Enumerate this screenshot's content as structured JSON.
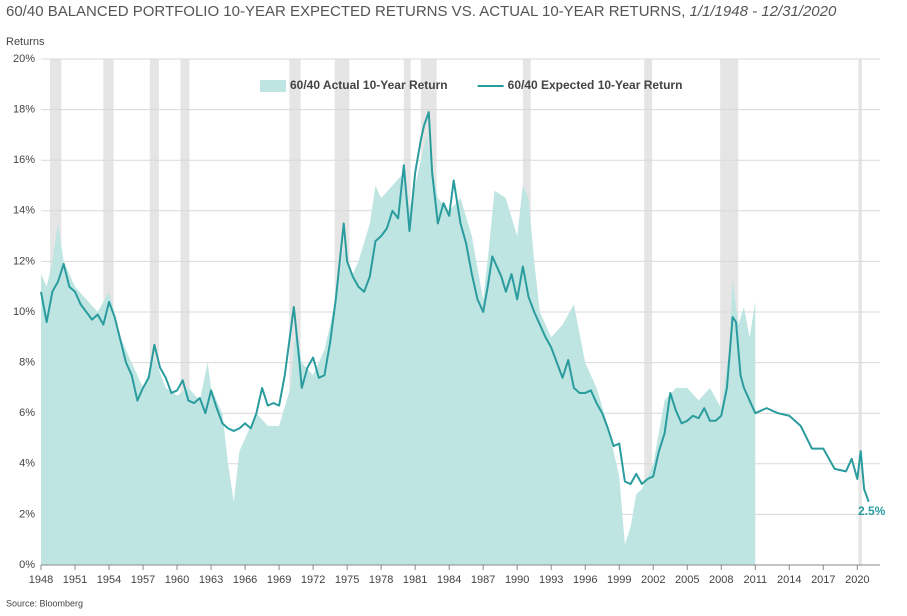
{
  "chart_data": {
    "type": "area-line",
    "title": "60/40 BALANCED PORTFOLIO 10-YEAR EXPECTED RETURNS VS. ACTUAL 10-YEAR RETURNS,",
    "title_range": "1/1/1948 - 12/31/2020",
    "y_label": "Returns",
    "source": "Source: Bloomberg",
    "xlim": [
      1948,
      2022
    ],
    "xticks": [
      1948,
      1951,
      1954,
      1957,
      1960,
      1963,
      1966,
      1969,
      1972,
      1975,
      1978,
      1981,
      1984,
      1987,
      1990,
      1993,
      1996,
      1999,
      2002,
      2005,
      2008,
      2011,
      2014,
      2017,
      2020
    ],
    "ylim": [
      0,
      20
    ],
    "yticks": [
      {
        "value": 0,
        "label": "0%"
      },
      {
        "value": 2,
        "label": "2%"
      },
      {
        "value": 4,
        "label": "4%"
      },
      {
        "value": 6,
        "label": "6%"
      },
      {
        "value": 8,
        "label": "8%"
      },
      {
        "value": 10,
        "label": "10%"
      },
      {
        "value": 12,
        "label": "12%"
      },
      {
        "value": 14,
        "label": "14%"
      },
      {
        "value": 16,
        "label": "16%"
      },
      {
        "value": 18,
        "label": "18%"
      },
      {
        "value": 20,
        "label": "20%"
      }
    ],
    "grid": true,
    "legend": "top",
    "shaded_color": "#e5e5e5",
    "shaded_periods": [
      [
        1948.8,
        1949.8
      ],
      [
        1953.5,
        1954.4
      ],
      [
        1957.6,
        1958.4
      ],
      [
        1960.3,
        1961.1
      ],
      [
        1969.9,
        1970.9
      ],
      [
        1973.9,
        1975.2
      ],
      [
        1980.0,
        1980.6
      ],
      [
        1981.5,
        1982.9
      ],
      [
        1990.5,
        1991.2
      ],
      [
        2001.2,
        2001.9
      ],
      [
        2007.9,
        2009.5
      ],
      [
        2020.1,
        2020.4
      ]
    ],
    "series": [
      {
        "name": "60/40 Actual 10-Year Return",
        "kind": "area",
        "color": "#bfe5e3",
        "x": [
          1948.0,
          1948.5,
          1949.0,
          1949.5,
          1950.0,
          1951.0,
          1952.0,
          1953.0,
          1954.0,
          1955.0,
          1956.0,
          1957.0,
          1958.0,
          1959.0,
          1960.0,
          1961.0,
          1962.0,
          1962.7,
          1963.0,
          1964.0,
          1964.5,
          1965.0,
          1965.5,
          1966.0,
          1967.0,
          1968.0,
          1969.0,
          1970.0,
          1970.5,
          1971.0,
          1972.0,
          1973.0,
          1974.0,
          1974.7,
          1975.5,
          1976.0,
          1977.0,
          1977.5,
          1978.0,
          1979.0,
          1980.0,
          1980.5,
          1981.0,
          1982.0,
          1983.0,
          1984.0,
          1985.0,
          1986.0,
          1987.0,
          1987.5,
          1988.0,
          1989.0,
          1990.0,
          1990.5,
          1991.0,
          1991.5,
          1992.0,
          1993.0,
          1994.0,
          1995.0,
          1996.0,
          1997.0,
          1998.0,
          1999.0,
          1999.5,
          2000.0,
          2000.5,
          2001.0,
          2002.0,
          2003.0,
          2004.0,
          2005.0,
          2006.0,
          2007.0,
          2008.0,
          2008.7,
          2009.0,
          2009.5,
          2010.0,
          2010.5,
          2011.0
        ],
        "values": [
          11.5,
          11.0,
          12.0,
          13.5,
          12.0,
          11.0,
          10.5,
          10.0,
          10.8,
          9.0,
          8.0,
          7.0,
          8.2,
          7.0,
          6.7,
          7.0,
          6.5,
          8.0,
          7.0,
          6.0,
          4.0,
          2.5,
          4.5,
          5.0,
          6.0,
          5.5,
          5.5,
          7.0,
          9.5,
          8.0,
          7.5,
          8.5,
          10.5,
          12.5,
          11.5,
          12.0,
          13.5,
          15.0,
          14.5,
          15.0,
          15.5,
          14.0,
          15.0,
          17.0,
          14.5,
          14.0,
          14.5,
          13.0,
          10.5,
          12.5,
          14.8,
          14.5,
          13.0,
          15.0,
          14.5,
          12.0,
          10.0,
          9.0,
          9.5,
          10.3,
          8.0,
          7.0,
          5.5,
          3.5,
          0.8,
          1.5,
          2.8,
          3.0,
          4.0,
          6.5,
          7.0,
          7.0,
          6.5,
          7.0,
          6.2,
          8.5,
          11.3,
          9.5,
          10.2,
          9.0,
          10.4
        ]
      },
      {
        "name": "60/40 Expected 10-Year Return",
        "kind": "line",
        "color": "#2b9c9e",
        "end_label": "2.5%",
        "x": [
          1948.0,
          1948.5,
          1949.0,
          1949.5,
          1950.0,
          1950.5,
          1951.0,
          1951.5,
          1952.0,
          1952.5,
          1953.0,
          1953.5,
          1954.0,
          1954.5,
          1955.0,
          1955.5,
          1956.0,
          1956.5,
          1957.0,
          1957.5,
          1958.0,
          1958.5,
          1959.0,
          1959.5,
          1960.0,
          1960.5,
          1961.0,
          1961.5,
          1962.0,
          1962.5,
          1963.0,
          1963.5,
          1964.0,
          1964.5,
          1965.0,
          1965.5,
          1966.0,
          1966.5,
          1967.0,
          1967.5,
          1968.0,
          1968.5,
          1969.0,
          1969.5,
          1970.3,
          1970.8,
          1971.0,
          1971.5,
          1972.0,
          1972.5,
          1973.0,
          1973.5,
          1974.0,
          1974.7,
          1975.0,
          1975.5,
          1976.0,
          1976.5,
          1977.0,
          1977.5,
          1978.0,
          1978.5,
          1979.0,
          1979.5,
          1980.0,
          1980.5,
          1981.0,
          1981.5,
          1981.8,
          1982.2,
          1982.5,
          1983.0,
          1983.5,
          1984.0,
          1984.4,
          1985.0,
          1985.5,
          1986.0,
          1986.5,
          1987.0,
          1987.4,
          1987.8,
          1988.2,
          1988.6,
          1989.0,
          1989.5,
          1990.0,
          1990.5,
          1991.0,
          1991.5,
          1992.0,
          1992.5,
          1993.0,
          1993.5,
          1994.0,
          1994.5,
          1995.0,
          1995.5,
          1996.0,
          1996.5,
          1997.0,
          1997.5,
          1998.0,
          1998.5,
          1999.0,
          1999.5,
          2000.0,
          2000.5,
          2001.0,
          2001.5,
          2002.0,
          2002.5,
          2003.0,
          2003.5,
          2004.0,
          2004.5,
          2005.0,
          2005.5,
          2006.0,
          2006.5,
          2007.0,
          2007.5,
          2008.0,
          2008.5,
          2009.0,
          2009.3,
          2009.7,
          2010.0,
          2010.5,
          2011.0,
          2012.0,
          2013.0,
          2014.0,
          2015.0,
          2016.0,
          2017.0,
          2018.0,
          2019.0,
          2019.5,
          2020.0,
          2020.3,
          2020.6,
          2021.0
        ],
        "values": [
          10.8,
          9.6,
          10.8,
          11.2,
          11.9,
          11.0,
          10.8,
          10.3,
          10.0,
          9.7,
          9.9,
          9.5,
          10.4,
          9.8,
          8.9,
          8.0,
          7.5,
          6.5,
          7.0,
          7.4,
          8.7,
          7.8,
          7.4,
          6.8,
          6.9,
          7.3,
          6.5,
          6.4,
          6.6,
          6.0,
          6.9,
          6.2,
          5.6,
          5.4,
          5.3,
          5.4,
          5.6,
          5.4,
          6.0,
          7.0,
          6.3,
          6.4,
          6.3,
          7.5,
          10.2,
          8.0,
          7.0,
          7.8,
          8.2,
          7.4,
          7.5,
          8.8,
          10.5,
          13.5,
          12.0,
          11.4,
          11.0,
          10.8,
          11.4,
          12.8,
          13.0,
          13.3,
          14.0,
          13.7,
          15.8,
          13.2,
          15.5,
          16.8,
          17.4,
          17.9,
          15.5,
          13.5,
          14.3,
          13.8,
          15.2,
          13.5,
          12.7,
          11.5,
          10.5,
          10.0,
          11.0,
          12.2,
          11.8,
          11.4,
          10.8,
          11.5,
          10.5,
          11.8,
          10.6,
          10.0,
          9.5,
          9.0,
          8.6,
          8.0,
          7.4,
          8.1,
          7.0,
          6.8,
          6.8,
          6.9,
          6.4,
          6.0,
          5.4,
          4.7,
          4.8,
          3.3,
          3.2,
          3.6,
          3.2,
          3.4,
          3.5,
          4.5,
          5.2,
          6.8,
          6.1,
          5.6,
          5.7,
          5.9,
          5.8,
          6.2,
          5.7,
          5.7,
          5.9,
          7.0,
          9.8,
          9.6,
          7.5,
          7.0,
          6.5,
          6.0,
          6.2,
          6.0,
          5.9,
          5.5,
          4.6,
          4.6,
          3.8,
          3.7,
          4.2,
          3.4,
          4.5,
          3.0,
          2.5
        ]
      }
    ]
  }
}
